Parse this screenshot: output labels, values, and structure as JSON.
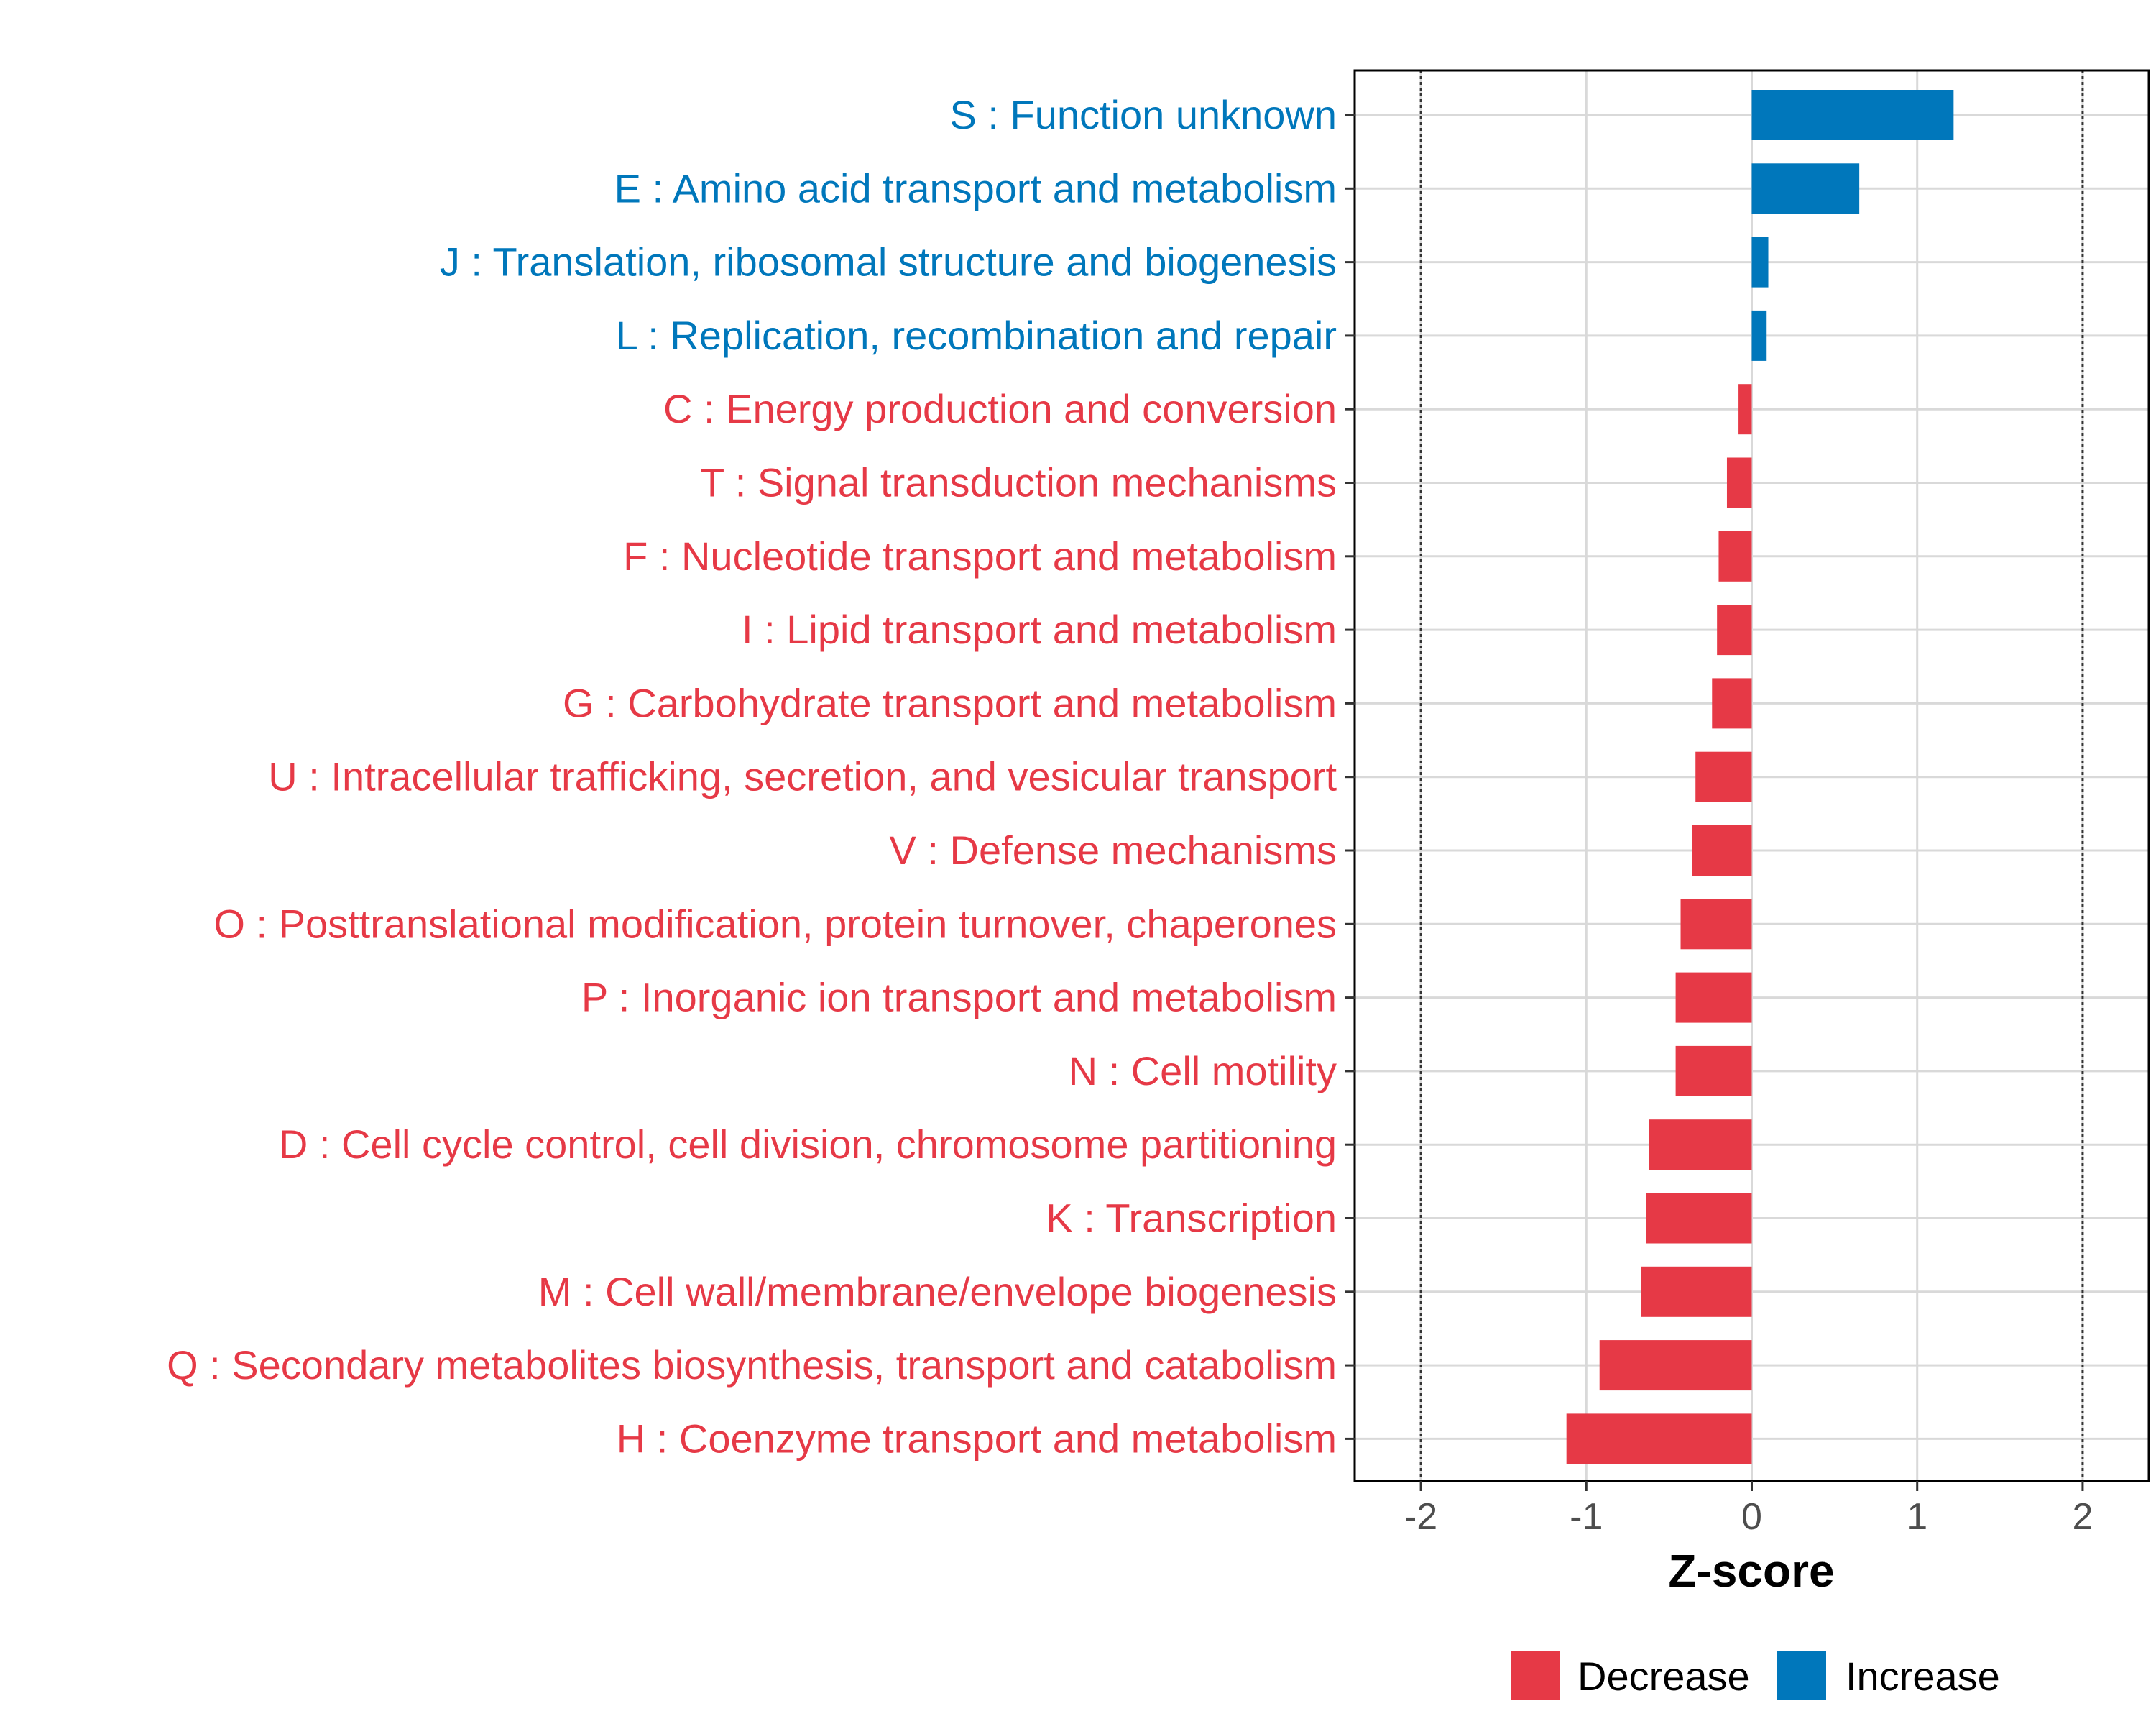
{
  "chart_data": {
    "type": "bar",
    "orientation": "horizontal",
    "title": "",
    "xlabel": "Z-score",
    "ylabel": "",
    "xlim": [
      -2.4,
      2.4
    ],
    "xticks": [
      -2,
      -1,
      0,
      1,
      2
    ],
    "xtick_labels": [
      "-2",
      "-1",
      "0",
      "1",
      "2"
    ],
    "reference_lines": [
      -2,
      2
    ],
    "grid": true,
    "legend_position": "bottom",
    "colors": {
      "Decrease": "#e63946",
      "Increase": "#0077bb"
    },
    "legend": [
      {
        "name": "Decrease",
        "color": "#e63946"
      },
      {
        "name": "Increase",
        "color": "#0077bb"
      }
    ],
    "categories": [
      "S : Function unknown",
      "E : Amino acid transport and metabolism",
      "J : Translation, ribosomal structure and biogenesis",
      "L : Replication, recombination and repair",
      "C : Energy production and conversion",
      "T : Signal transduction mechanisms",
      "F : Nucleotide transport and metabolism",
      "I : Lipid transport and metabolism",
      "G : Carbohydrate transport and metabolism",
      "U : Intracellular trafficking, secretion, and vesicular transport",
      "V : Defense mechanisms",
      "O : Posttranslational modification, protein turnover, chaperones",
      "P : Inorganic ion transport and metabolism",
      "N : Cell motility",
      "D : Cell cycle control, cell division, chromosome partitioning",
      "K : Transcription",
      "M : Cell wall/membrane/envelope biogenesis",
      "Q : Secondary metabolites biosynthesis, transport and catabolism",
      "H : Coenzyme transport and metabolism"
    ],
    "values": [
      1.22,
      0.65,
      0.1,
      0.09,
      -0.08,
      -0.15,
      -0.2,
      -0.21,
      -0.24,
      -0.34,
      -0.36,
      -0.43,
      -0.46,
      -0.46,
      -0.62,
      -0.64,
      -0.67,
      -0.92,
      -1.12
    ],
    "groups": [
      "Increase",
      "Increase",
      "Increase",
      "Increase",
      "Decrease",
      "Decrease",
      "Decrease",
      "Decrease",
      "Decrease",
      "Decrease",
      "Decrease",
      "Decrease",
      "Decrease",
      "Decrease",
      "Decrease",
      "Decrease",
      "Decrease",
      "Decrease",
      "Decrease"
    ]
  }
}
